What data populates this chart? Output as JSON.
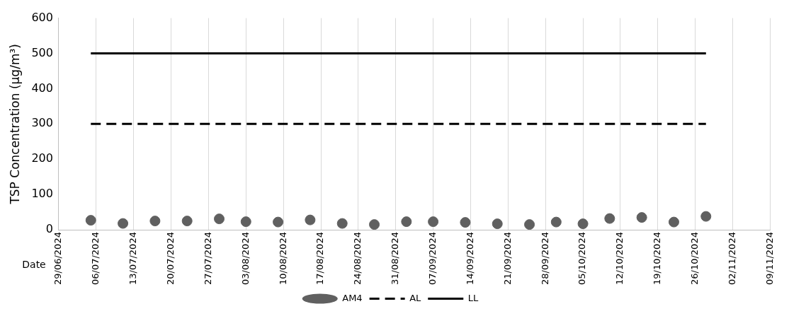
{
  "chart_data": {
    "type": "scatter",
    "ylabel": "TSP Concentration (µg/m³)",
    "xlabel": "Date",
    "xlim": [
      "2024-06-29",
      "2024-11-09"
    ],
    "xticks": [
      {
        "value": "2024-06-29",
        "label": "29/06/2024"
      },
      {
        "value": "2024-07-06",
        "label": "06/07/2024"
      },
      {
        "value": "2024-07-13",
        "label": "13/07/2024"
      },
      {
        "value": "2024-07-20",
        "label": "20/07/2024"
      },
      {
        "value": "2024-07-27",
        "label": "27/07/2024"
      },
      {
        "value": "2024-08-03",
        "label": "03/08/2024"
      },
      {
        "value": "2024-08-10",
        "label": "10/08/2024"
      },
      {
        "value": "2024-08-17",
        "label": "17/08/2024"
      },
      {
        "value": "2024-08-24",
        "label": "24/08/2024"
      },
      {
        "value": "2024-08-31",
        "label": "31/08/2024"
      },
      {
        "value": "2024-09-07",
        "label": "07/09/2024"
      },
      {
        "value": "2024-09-14",
        "label": "14/09/2024"
      },
      {
        "value": "2024-09-21",
        "label": "21/09/2024"
      },
      {
        "value": "2024-09-28",
        "label": "28/09/2024"
      },
      {
        "value": "2024-10-05",
        "label": "05/10/2024"
      },
      {
        "value": "2024-10-12",
        "label": "12/10/2024"
      },
      {
        "value": "2024-10-19",
        "label": "19/10/2024"
      },
      {
        "value": "2024-10-26",
        "label": "26/10/2024"
      },
      {
        "value": "2024-11-02",
        "label": "02/11/2024"
      },
      {
        "value": "2024-11-09",
        "label": "09/11/2024"
      }
    ],
    "ylim": [
      0,
      600
    ],
    "yticks": [
      0,
      100,
      200,
      300,
      400,
      500,
      600
    ],
    "grid": "x",
    "legend": "bottom",
    "series": [
      {
        "name": "AM4",
        "marker": "circle",
        "color": "#606060",
        "x": [
          "2024-07-05",
          "2024-07-11",
          "2024-07-17",
          "2024-07-23",
          "2024-07-29",
          "2024-08-03",
          "2024-08-09",
          "2024-08-15",
          "2024-08-21",
          "2024-08-27",
          "2024-09-02",
          "2024-09-07",
          "2024-09-13",
          "2024-09-19",
          "2024-09-25",
          "2024-09-30",
          "2024-10-05",
          "2024-10-10",
          "2024-10-16",
          "2024-10-22",
          "2024-10-28"
        ],
        "values": [
          27,
          18,
          25,
          25,
          31,
          23,
          22,
          28,
          18,
          15,
          23,
          23,
          21,
          17,
          15,
          22,
          17,
          32,
          35,
          22,
          38
        ]
      },
      {
        "name": "AL",
        "type": "line",
        "marker": "none",
        "line_style": "dashed",
        "color": "#000000",
        "x": [
          "2024-07-05",
          "2024-10-28"
        ],
        "values": [
          300,
          300
        ]
      },
      {
        "name": "LL",
        "type": "line",
        "marker": "none",
        "line_style": "solid",
        "color": "#000000",
        "x": [
          "2024-07-05",
          "2024-10-28"
        ],
        "values": [
          500,
          500
        ]
      }
    ]
  }
}
